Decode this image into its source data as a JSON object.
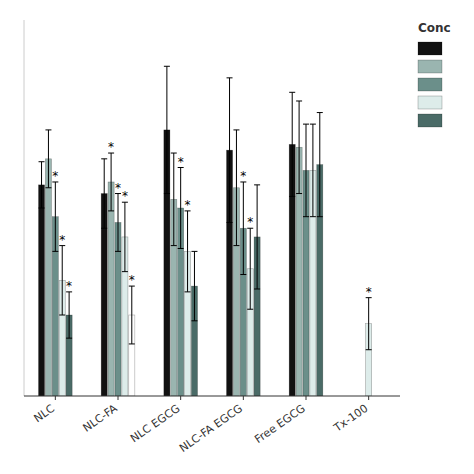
{
  "chart_data": {
    "type": "bar",
    "categories": [
      "NLC",
      "NLC-FA",
      "NLC EGCG",
      "NLC-FA EGCG",
      "Free EGCG",
      "Tx-100"
    ],
    "legend_title": "Conc",
    "legend": "upper right",
    "ylim": [
      0,
      130
    ],
    "tick_labels": "x",
    "grid": false,
    "significance_label": "*",
    "series": [
      {
        "color": "#111111",
        "values": [
          73,
          70,
          92,
          85,
          87,
          null
        ],
        "errors": [
          8,
          12,
          22,
          25,
          18,
          null
        ],
        "significant": [
          false,
          false,
          false,
          false,
          false,
          null
        ]
      },
      {
        "color": "#9ab5b0",
        "values": [
          82,
          74,
          68,
          72,
          86,
          null
        ],
        "errors": [
          10,
          10,
          16,
          20,
          16,
          null
        ],
        "significant": [
          false,
          true,
          false,
          false,
          false,
          null
        ]
      },
      {
        "color": "#6b8f8a",
        "values": [
          62,
          60,
          65,
          58,
          78,
          null
        ],
        "errors": [
          12,
          10,
          14,
          16,
          16,
          null
        ],
        "significant": [
          true,
          true,
          true,
          true,
          false,
          null
        ]
      },
      {
        "color": "#ddecea",
        "values": [
          40,
          55,
          50,
          44,
          78,
          25
        ],
        "errors": [
          12,
          12,
          14,
          14,
          16,
          9
        ],
        "significant": [
          true,
          true,
          true,
          true,
          false,
          true
        ]
      },
      {
        "color": "#4a6b67",
        "colors": [
          "#4a6b67",
          "#ffffff",
          "#4a6b67",
          "#4a6b67",
          "#4a6b67",
          "#4a6b67"
        ],
        "values": [
          28,
          28,
          38,
          55,
          80,
          null
        ],
        "errors": [
          8,
          10,
          12,
          18,
          18,
          null
        ],
        "significant": [
          true,
          true,
          false,
          false,
          false,
          null
        ]
      }
    ]
  }
}
